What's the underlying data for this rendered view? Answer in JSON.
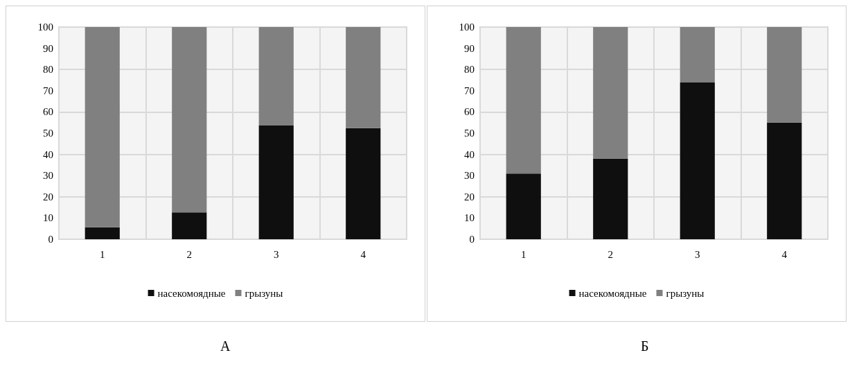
{
  "chart_data": [
    {
      "type": "bar",
      "stacked": true,
      "categories": [
        "1",
        "2",
        "3",
        "4"
      ],
      "series": [
        {
          "name": "насекомоядные",
          "color": "#0f0f0f",
          "values": [
            5.6,
            12.7,
            53.6,
            52.4
          ]
        },
        {
          "name": "грызуны",
          "color": "#808080",
          "values": [
            94.4,
            87.3,
            46.4,
            47.6
          ]
        }
      ],
      "ylim": [
        0,
        100
      ],
      "yticks": [
        0,
        10,
        20,
        30,
        40,
        50,
        60,
        70,
        80,
        90,
        100
      ],
      "grid": true,
      "legend": "bottom",
      "annotations": [
        "А"
      ]
    },
    {
      "type": "bar",
      "stacked": true,
      "categories": [
        "1",
        "2",
        "3",
        "4"
      ],
      "series": [
        {
          "name": "насекомоядные",
          "color": "#0f0f0f",
          "values": [
            31,
            38,
            74,
            55
          ]
        },
        {
          "name": "грызуны",
          "color": "#808080",
          "values": [
            69,
            62,
            26,
            45
          ]
        }
      ],
      "ylim": [
        0,
        100
      ],
      "yticks": [
        0,
        10,
        20,
        30,
        40,
        50,
        60,
        70,
        80,
        90,
        100
      ],
      "grid": true,
      "legend": "bottom",
      "annotations": [
        "Б"
      ]
    }
  ]
}
